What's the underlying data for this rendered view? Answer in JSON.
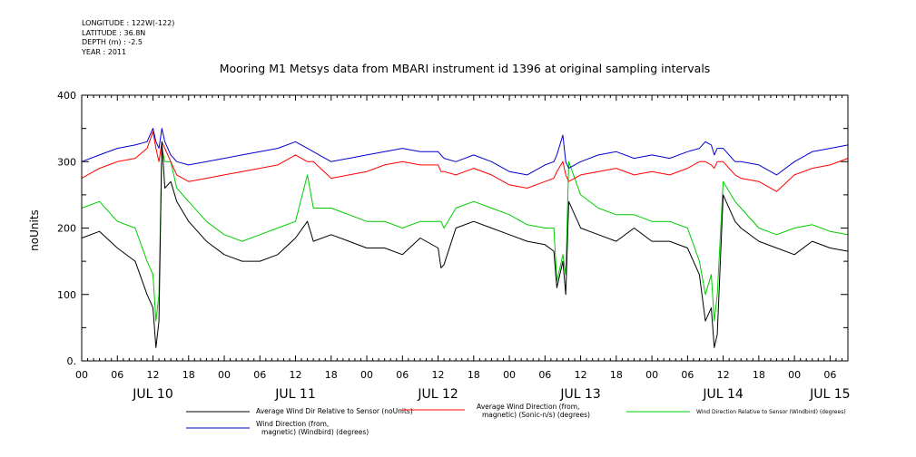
{
  "header": {
    "lines": [
      "LONGITUDE : 122W(-122)",
      "LATITUDE : 36.8N",
      "DEPTH (m) : -2.5",
      "YEAR : 2011"
    ]
  },
  "chart_data": {
    "type": "line",
    "title": "Mooring M1 Metsys data from MBARI instrument id 1396 at original sampling intervals",
    "ylabel": "noUnits",
    "xlabel": "",
    "ylim": [
      0,
      400
    ],
    "yticks": [
      "0.",
      "100",
      "200",
      "300",
      "400"
    ],
    "xlim": [
      0,
      129
    ],
    "xtick_hours": [
      0,
      6,
      12,
      18,
      24,
      30,
      36,
      42,
      48,
      54,
      60,
      66,
      72,
      78,
      84,
      90,
      96,
      102,
      108,
      114,
      120,
      126
    ],
    "xtick_labels": [
      "00",
      "06",
      "12",
      "18",
      "00",
      "06",
      "12",
      "18",
      "00",
      "06",
      "12",
      "18",
      "00",
      "06",
      "12",
      "18",
      "00",
      "06",
      "12",
      "18",
      "00",
      "06"
    ],
    "day_labels": [
      {
        "hour": 12,
        "label": "JUL 10"
      },
      {
        "hour": 36,
        "label": "JUL 11"
      },
      {
        "hour": 60,
        "label": "JUL 12"
      },
      {
        "hour": 84,
        "label": "JUL 13"
      },
      {
        "hour": 108,
        "label": "JUL 14"
      },
      {
        "hour": 126,
        "label": "JUL 15"
      }
    ],
    "grid": false,
    "legend_position": "bottom",
    "x_hours": [
      0,
      3,
      6,
      9,
      11,
      12,
      12.5,
      13,
      13.5,
      14,
      15,
      16,
      18,
      21,
      24,
      27,
      30,
      33,
      36,
      38,
      39,
      42,
      45,
      48,
      51,
      54,
      57,
      60,
      60.5,
      61,
      63,
      66,
      69,
      72,
      75,
      78,
      79.5,
      80,
      81,
      81.5,
      82,
      84,
      87,
      90,
      93,
      96,
      99,
      102,
      104,
      105,
      106,
      106.5,
      107,
      108,
      110,
      111,
      114,
      117,
      120,
      123,
      126,
      129
    ],
    "series": [
      {
        "name": "Average Wind Dir Relative to Sensor (noUnits)",
        "color": "#000000",
        "values": [
          185,
          195,
          170,
          150,
          100,
          80,
          20,
          60,
          330,
          260,
          270,
          240,
          210,
          180,
          160,
          150,
          150,
          160,
          185,
          210,
          180,
          190,
          180,
          170,
          170,
          160,
          185,
          170,
          140,
          145,
          200,
          210,
          200,
          190,
          180,
          175,
          165,
          110,
          150,
          100,
          240,
          200,
          190,
          180,
          200,
          180,
          180,
          170,
          130,
          60,
          80,
          20,
          40,
          250,
          210,
          200,
          180,
          170,
          160,
          180,
          170,
          165
        ]
      },
      {
        "name": "Average Wind Direction (from, magnetic) (Sonic-n/s) (degrees)",
        "color": "#ff0000",
        "values": [
          275,
          290,
          300,
          305,
          320,
          345,
          320,
          300,
          330,
          320,
          300,
          280,
          270,
          275,
          280,
          285,
          290,
          295,
          310,
          300,
          300,
          275,
          280,
          285,
          295,
          300,
          295,
          295,
          285,
          285,
          280,
          290,
          280,
          265,
          260,
          270,
          275,
          285,
          300,
          280,
          270,
          280,
          285,
          290,
          280,
          285,
          280,
          290,
          300,
          300,
          295,
          290,
          300,
          300,
          280,
          275,
          270,
          255,
          280,
          290,
          295,
          305
        ]
      },
      {
        "name": "Wind Direction Relative to Sensor (Windbird) (degrees)",
        "color": "#00cc00",
        "values": [
          230,
          240,
          210,
          200,
          150,
          130,
          60,
          100,
          320,
          300,
          300,
          260,
          240,
          210,
          190,
          180,
          190,
          200,
          210,
          280,
          230,
          230,
          220,
          210,
          210,
          200,
          210,
          210,
          210,
          200,
          230,
          240,
          230,
          220,
          205,
          200,
          200,
          120,
          160,
          130,
          300,
          250,
          230,
          220,
          220,
          210,
          210,
          200,
          150,
          100,
          130,
          60,
          100,
          270,
          240,
          230,
          200,
          190,
          200,
          205,
          195,
          190
        ]
      },
      {
        "name": "Wind Direction (from, magnetic) (Windbird) (degrees)",
        "color": "#0000cc",
        "values": [
          300,
          310,
          320,
          325,
          330,
          350,
          330,
          320,
          350,
          330,
          310,
          300,
          295,
          300,
          305,
          310,
          315,
          320,
          330,
          320,
          315,
          300,
          305,
          310,
          315,
          320,
          315,
          315,
          310,
          305,
          300,
          310,
          300,
          285,
          280,
          295,
          300,
          310,
          340,
          300,
          290,
          300,
          310,
          315,
          305,
          310,
          305,
          315,
          320,
          330,
          325,
          310,
          320,
          320,
          300,
          300,
          295,
          280,
          300,
          315,
          320,
          325
        ]
      }
    ]
  },
  "legend": {
    "items": [
      {
        "line1": "Average Wind Dir Relative to Sensor (noUnits)",
        "line2": ""
      },
      {
        "line1": "Average Wind Direction (from,",
        "line2": "magnetic) (Sonic-n/s) (degrees)"
      },
      {
        "line1": "Wind Direction Relative to Sensor (Windbird) (degrees)",
        "line2": ""
      },
      {
        "line1": "Wind Direction (from,",
        "line2": "magnetic) (Windbird) (degrees)"
      }
    ]
  }
}
